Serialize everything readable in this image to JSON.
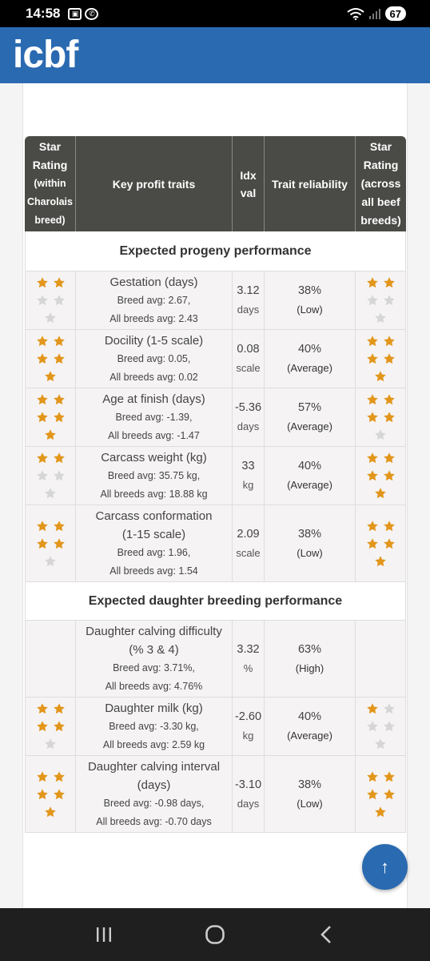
{
  "status_bar": {
    "time": "14:58",
    "battery": "67",
    "left_icons": [
      "screenshot-icon",
      "whatsapp-icon"
    ],
    "right_icons": [
      "wifi-icon",
      "signal-icon"
    ]
  },
  "header": {
    "logo_text": "icbf",
    "background": "#2a6ab1"
  },
  "table": {
    "headers": {
      "star_within": [
        "Star",
        "Rating",
        "(within",
        "Charolais",
        "breed)"
      ],
      "trait": "Key profit traits",
      "idx": [
        "Idx",
        "val"
      ],
      "reliability": "Trait reliability",
      "star_across": [
        "Star",
        "Rating",
        "(across",
        "all beef",
        "breeds)"
      ]
    },
    "sections": [
      {
        "title": "Expected progeny performance",
        "rows": [
          {
            "name": [
              "Gestation (days)"
            ],
            "breed_avg": "Breed avg: 2.67,",
            "all_avg": "All breeds avg: 2.43",
            "idx": "3.12",
            "unit": "days",
            "pct": "38%",
            "level": "(Low)",
            "stars_within": 2,
            "stars_across": 2
          },
          {
            "name": [
              "Docility (1-5 scale)"
            ],
            "breed_avg": "Breed avg: 0.05,",
            "all_avg": "All breeds avg: 0.02",
            "idx": "0.08",
            "unit": "scale",
            "pct": "40%",
            "level": "(Average)",
            "stars_within": 5,
            "stars_across": 5
          },
          {
            "name": [
              "Age at finish (days)"
            ],
            "breed_avg": "Breed avg: -1.39,",
            "all_avg": "All breeds avg: -1.47",
            "idx": "-5.36",
            "unit": "days",
            "pct": "57%",
            "level": "(Average)",
            "stars_within": 5,
            "stars_across": 4
          },
          {
            "name": [
              "Carcass weight (kg)"
            ],
            "breed_avg": "Breed avg: 35.75 kg,",
            "all_avg": "All breeds avg: 18.88 kg",
            "idx": "33",
            "unit": "kg",
            "pct": "40%",
            "level": "(Average)",
            "stars_within": 2,
            "stars_across": 5
          },
          {
            "name": [
              "Carcass conformation",
              "(1-15 scale)"
            ],
            "breed_avg": "Breed avg: 1.96,",
            "all_avg": "All breeds avg: 1.54",
            "idx": "2.09",
            "unit": "scale",
            "pct": "38%",
            "level": "(Low)",
            "stars_within": 4,
            "stars_across": 5
          }
        ]
      },
      {
        "title": "Expected daughter breeding performance",
        "rows": [
          {
            "name": [
              "Daughter calving difficulty",
              "(% 3 & 4)"
            ],
            "breed_avg": "Breed avg: 3.71%,",
            "all_avg": "All breeds avg: 4.76%",
            "idx": "3.32",
            "unit": "%",
            "pct": "63%",
            "level": "(High)",
            "stars_within": null,
            "stars_across": null
          },
          {
            "name": [
              "Daughter milk (kg)"
            ],
            "breed_avg": "Breed avg: -3.30 kg,",
            "all_avg": "All breeds avg: 2.59 kg",
            "idx": "-2.60",
            "unit": "kg",
            "pct": "40%",
            "level": "(Average)",
            "stars_within": 4,
            "stars_across": 1
          },
          {
            "name": [
              "Daughter calving interval",
              "(days)"
            ],
            "breed_avg": "Breed avg: -0.98 days,",
            "all_avg": "All breeds avg: -0.70 days",
            "idx": "-3.10",
            "unit": "days",
            "pct": "38%",
            "level": "(Low)",
            "stars_within": 5,
            "stars_across": 5
          }
        ]
      }
    ]
  },
  "colors": {
    "star_filled": "#e2961b",
    "star_empty": "#d6d6d6",
    "header_bg": "#4a4a47",
    "row_bg": "#f5f3f4",
    "brand": "#2a6ab1"
  },
  "fab": {
    "label": "↑",
    "icon": "arrow-up-icon"
  },
  "nav": {
    "buttons": [
      "recent-apps-icon",
      "home-icon",
      "back-icon"
    ]
  }
}
